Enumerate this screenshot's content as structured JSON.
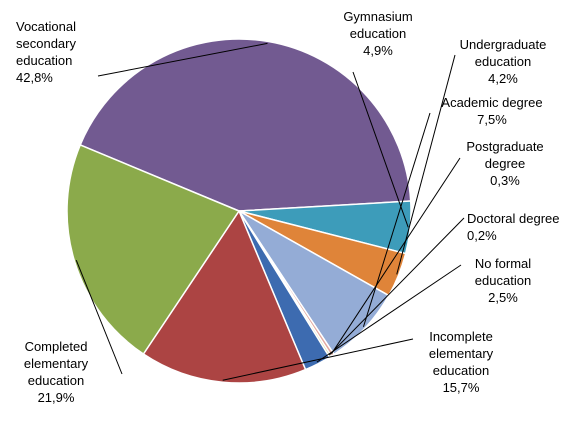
{
  "chart_data": {
    "type": "pie",
    "title": "",
    "legend": "none",
    "slices": [
      {
        "label": "Vocational secondary education",
        "value_label": "42,8%",
        "value": 42.8,
        "color": "#725A91"
      },
      {
        "label": "Gymnasium education",
        "value_label": "4,9%",
        "value": 4.9,
        "color": "#3D9CBA"
      },
      {
        "label": "Undergraduate education",
        "value_label": "4,2%",
        "value": 4.2,
        "color": "#DF8439"
      },
      {
        "label": "Academic degree",
        "value_label": "7,5%",
        "value": 7.5,
        "color": "#94ACD6"
      },
      {
        "label": "Postgraduate degree",
        "value_label": "0,3%",
        "value": 0.3,
        "color": "#E1A89F"
      },
      {
        "label": "Doctoral degree",
        "value_label": "0,2%",
        "value": 0.2,
        "color": "#C9D79B"
      },
      {
        "label": "No formal education",
        "value_label": "2,5%",
        "value": 2.5,
        "color": "#3D6BB0"
      },
      {
        "label": "Incomplete elementary education",
        "value_label": "15,7%",
        "value": 15.7,
        "color": "#AC4443"
      },
      {
        "label": "Completed elementary education",
        "value_label": "21,9%",
        "value": 21.9,
        "color": "#8BAA4B"
      }
    ]
  }
}
